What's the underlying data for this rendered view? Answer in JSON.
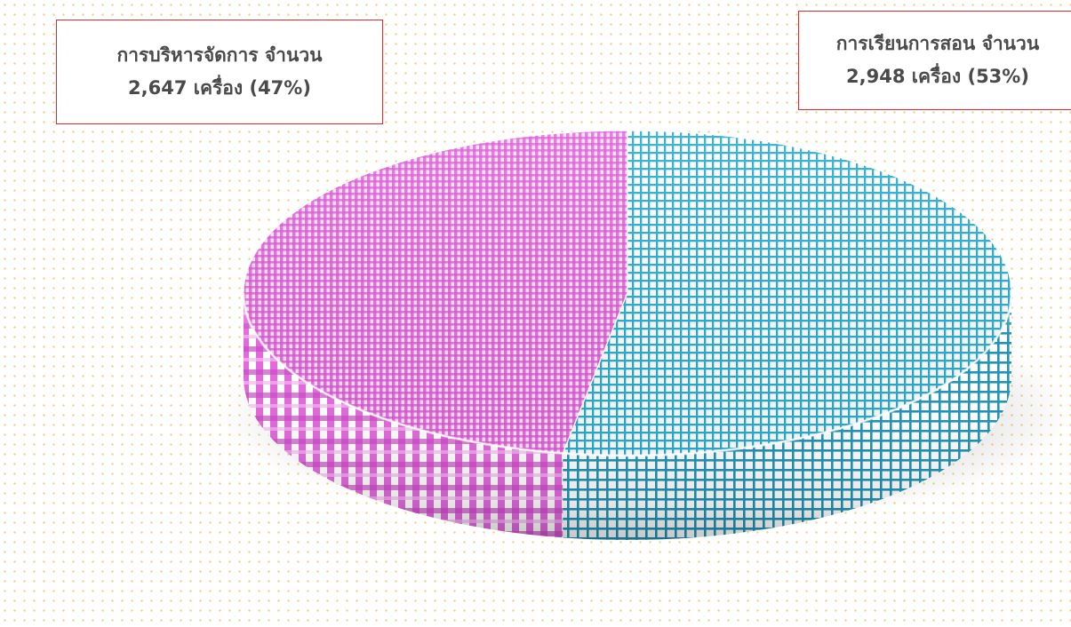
{
  "chart_data": {
    "type": "pie",
    "title": "",
    "slices": [
      {
        "label": "การบริหารจัดการ",
        "value": 2647,
        "percent": 47,
        "label_line1": "การบริหารจัดการ จำนวน",
        "label_line2": "2,647 เครื่อง (47%)",
        "color": "#e86fe0"
      },
      {
        "label": "การเรียนการสอน",
        "value": 2948,
        "percent": 53,
        "label_line1": "การเรียนการสอน จำนวน",
        "label_line2": "2,948 เครื่อง  (53%)",
        "color": "#2aaecf"
      }
    ],
    "style": "3d-patterned",
    "legend": "none"
  },
  "colors": {
    "callout_border": "#e0262f",
    "background_dots": "#f2cf86",
    "label_text": "#4a4a4a"
  }
}
